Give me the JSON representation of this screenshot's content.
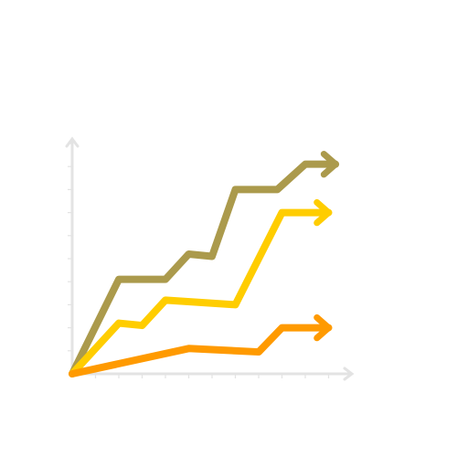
{
  "chart_data": {
    "type": "line",
    "title": "",
    "xlabel": "",
    "ylabel": "",
    "xlim": [
      0,
      11
    ],
    "ylim": [
      0,
      10
    ],
    "x_ticks": [
      0,
      1,
      2,
      3,
      4,
      5,
      6,
      7,
      8,
      9,
      10,
      11
    ],
    "y_ticks": [
      0,
      1,
      2,
      3,
      4,
      5,
      6,
      7,
      8,
      9,
      10
    ],
    "grid": false,
    "legend": "none",
    "arrowheads_on_series_end": true,
    "series": [
      {
        "color": "#ab9a4c",
        "points": [
          [
            0,
            0
          ],
          [
            2,
            4.1
          ],
          [
            4,
            4.1
          ],
          [
            5,
            5.2
          ],
          [
            6,
            5.1
          ],
          [
            7,
            8.0
          ],
          [
            8.8,
            8.0
          ],
          [
            10,
            9.1
          ],
          [
            11.3,
            9.1
          ]
        ]
      },
      {
        "color": "#ffcd00",
        "points": [
          [
            0,
            0
          ],
          [
            2,
            2.2
          ],
          [
            3,
            2.1
          ],
          [
            4,
            3.2
          ],
          [
            7,
            3.0
          ],
          [
            9,
            7.0
          ],
          [
            11,
            7.0
          ]
        ]
      },
      {
        "color": "#ff9a00",
        "points": [
          [
            0,
            0
          ],
          [
            5,
            1.1
          ],
          [
            8,
            0.95
          ],
          [
            9,
            2.0
          ],
          [
            11,
            2.0
          ]
        ]
      }
    ]
  }
}
